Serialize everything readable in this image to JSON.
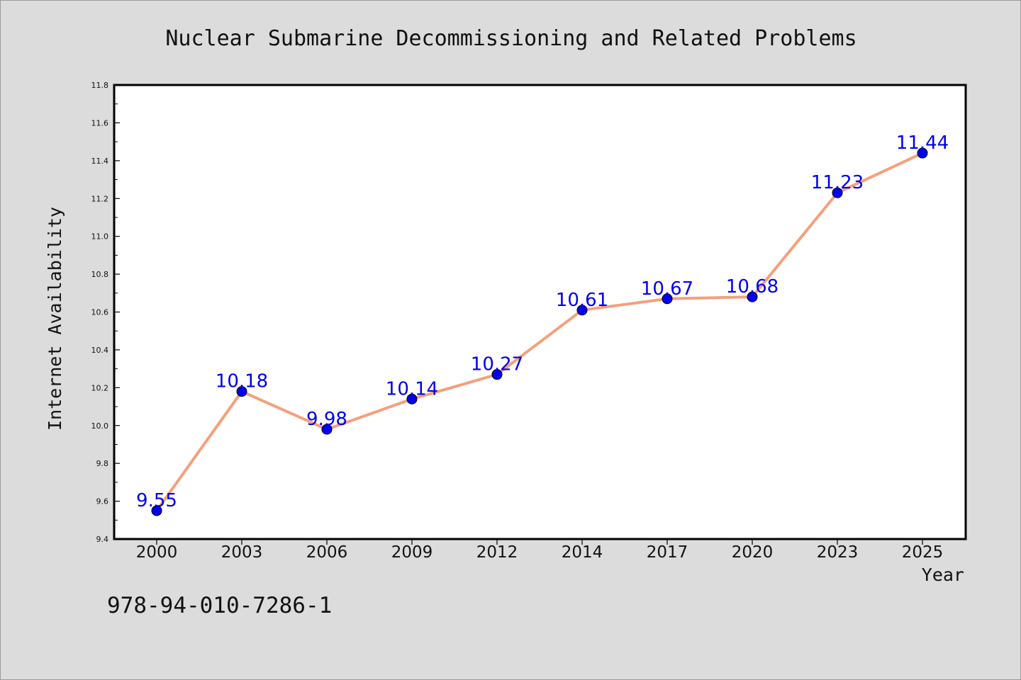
{
  "chart_data": {
    "type": "line",
    "title": "Nuclear Submarine Decommissioning and Related Problems",
    "xlabel": "Year",
    "ylabel": "Internet Availability",
    "categories": [
      "2000",
      "2003",
      "2006",
      "2009",
      "2012",
      "2014",
      "2017",
      "2020",
      "2023",
      "2025"
    ],
    "series": [
      {
        "values": [
          9.55,
          10.18,
          9.98,
          10.14,
          10.27,
          10.61,
          10.67,
          10.68,
          11.23,
          11.44
        ],
        "labels": [
          "9.55",
          "10.18",
          "9.98",
          "10.14",
          "10.27",
          "10.61",
          "10.67",
          "10.68",
          "11.23",
          "11.44"
        ],
        "line_color": "#f4a07c",
        "marker_color": "#0000ee"
      }
    ],
    "ylim": [
      9.4,
      11.8
    ],
    "yticks": [
      "9.4",
      "9.6",
      "9.8",
      "10.0",
      "10.2",
      "10.4",
      "10.6",
      "10.8",
      "11.0",
      "11.2",
      "11.4",
      "11.6",
      "11.8"
    ],
    "grid": false,
    "legend": "none",
    "label_color": "#0000ee"
  },
  "footer": {
    "isbn": "978-94-010-7286-1"
  }
}
